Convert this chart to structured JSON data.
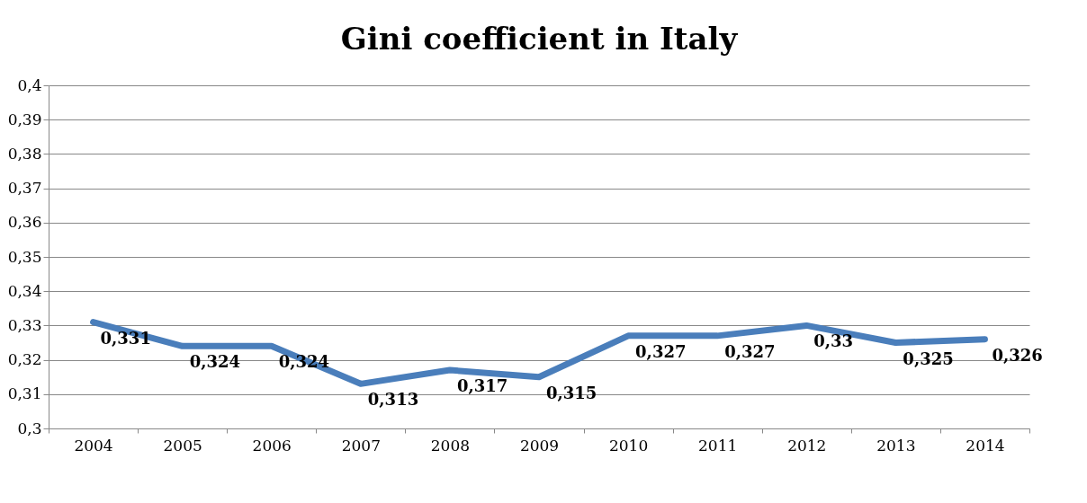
{
  "chart_data": {
    "type": "line",
    "title": "Gini coefficient in Italy",
    "categories": [
      "2004",
      "2005",
      "2006",
      "2007",
      "2008",
      "2009",
      "2010",
      "2011",
      "2012",
      "2013",
      "2014"
    ],
    "series": [
      {
        "color": "#4a7ebb",
        "values": [
          0.331,
          0.324,
          0.324,
          0.313,
          0.317,
          0.315,
          0.327,
          0.327,
          0.33,
          0.325,
          0.326
        ]
      }
    ],
    "value_labels": [
      "0,331",
      "0,324",
      "0,324",
      "0,313",
      "0,317",
      "0,315",
      "0,327",
      "0,327",
      "0,33",
      "0,325",
      "0,326"
    ],
    "ylim": [
      0.3,
      0.4
    ],
    "yticks": [
      {
        "value": 0.3,
        "label": "0,3"
      },
      {
        "value": 0.31,
        "label": "0,31"
      },
      {
        "value": 0.32,
        "label": "0,32"
      },
      {
        "value": 0.33,
        "label": "0,33"
      },
      {
        "value": 0.34,
        "label": "0,34"
      },
      {
        "value": 0.35,
        "label": "0,35"
      },
      {
        "value": 0.36,
        "label": "0,36"
      },
      {
        "value": 0.37,
        "label": "0,37"
      },
      {
        "value": 0.38,
        "label": "0,38"
      },
      {
        "value": 0.39,
        "label": "0,39"
      },
      {
        "value": 0.4,
        "label": "0,4"
      }
    ],
    "grid": "y",
    "marker": "none",
    "line_style": "solid"
  }
}
